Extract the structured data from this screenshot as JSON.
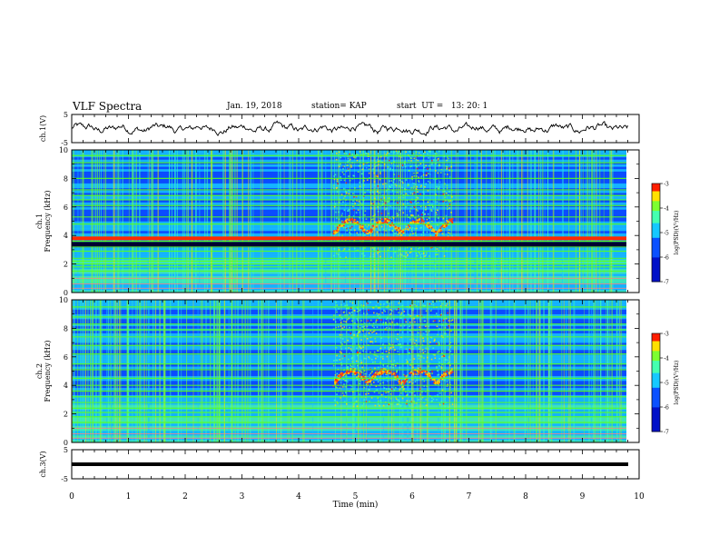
{
  "header": {
    "title": "VLF Spectra",
    "date": "Jan. 19, 2018",
    "station": "station= KAP",
    "start": "start  UT =   13: 20: 1"
  },
  "chart_data": [
    {
      "type": "line",
      "panel": "ch1-waveform",
      "ylabel": "ch.1(V)",
      "ylim": [
        -5,
        5
      ],
      "yticks": [
        "5",
        "-5"
      ],
      "xlim": [
        0,
        10
      ],
      "series": [
        {
          "values_note": "noisy waveform around 0 V, amplitude approx ±2 V",
          "amplitude": 2.0
        }
      ]
    },
    {
      "type": "heatmap",
      "panel": "ch1-spectrogram",
      "ylabel": "ch.1\nFrequency (kHz)",
      "ylim": [
        0,
        10
      ],
      "yticks": [
        "0",
        "2",
        "4",
        "6",
        "8",
        "10"
      ],
      "xlim": [
        0,
        9.8
      ],
      "hlines_khz": [
        0.3,
        0.6,
        1.0,
        1.5,
        1.8,
        2.0,
        2.2,
        2.4,
        2.9,
        3.2,
        3.6,
        3.8,
        4.8,
        5.3,
        6.1,
        6.5,
        6.8,
        7.2,
        8.0,
        9.1,
        9.6
      ],
      "strong_line_khz": 3.8,
      "chorus_time_min": [
        4.6,
        6.7
      ],
      "colorbar": {
        "label": "log(PSD)(V²/Hz)",
        "ticks": [
          "-3",
          "-4",
          "-5",
          "-6",
          "-7"
        ],
        "range": [
          -7,
          -3
        ]
      }
    },
    {
      "type": "heatmap",
      "panel": "ch2-spectrogram",
      "ylabel": "ch.2\nFrequency (kHz)",
      "ylim": [
        0,
        10
      ],
      "yticks": [
        "0",
        "2",
        "4",
        "6",
        "8",
        "10"
      ],
      "xlim": [
        0,
        9.8
      ],
      "hlines_khz": [
        0.3,
        0.6,
        1.0,
        1.4,
        1.8,
        2.1,
        2.4,
        2.8,
        3.2,
        3.6,
        4.0,
        4.5,
        5.1,
        5.5,
        6.2,
        6.8,
        7.4,
        7.9,
        8.3,
        8.8,
        9.5
      ],
      "strong_line_khz": null,
      "chorus_time_min": [
        4.6,
        6.7
      ],
      "colorbar": {
        "label": "log(PSD)(V²/Hz)",
        "ticks": [
          "-3",
          "-4",
          "-5",
          "-6",
          "-7"
        ],
        "range": [
          -7,
          -3
        ]
      }
    },
    {
      "type": "line",
      "panel": "ch3-waveform",
      "ylabel": "ch.3(V)",
      "ylim": [
        -5,
        5
      ],
      "yticks": [
        "5",
        "-5"
      ],
      "xlim": [
        0,
        10
      ],
      "series": [
        {
          "values_note": "flat line",
          "value": 0.0
        }
      ]
    }
  ],
  "x_axis": {
    "label": "Time (min)",
    "range": [
      0,
      10
    ],
    "ticks": [
      "0",
      "1",
      "2",
      "3",
      "4",
      "5",
      "6",
      "7",
      "8",
      "9",
      "10"
    ]
  },
  "colors": {
    "waveform": "#000000",
    "bg_dark": "#00006a",
    "bg_mid": "#0a30ff",
    "line_green": "#55ff22",
    "line_red": "#ff2a00"
  }
}
